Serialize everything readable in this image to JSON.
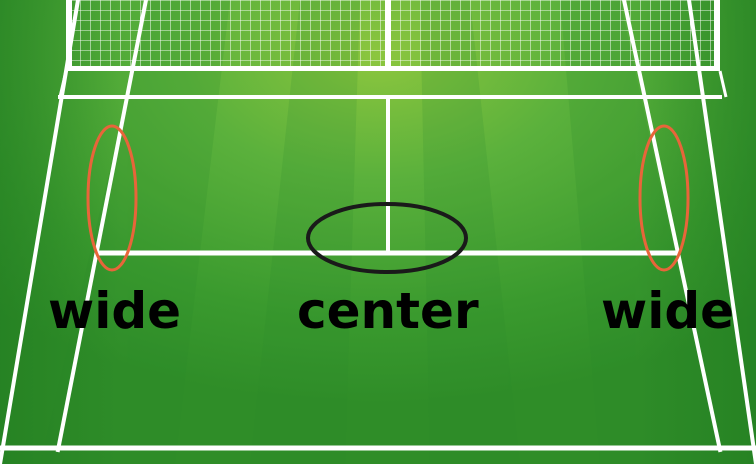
{
  "labels": {
    "wide_left": "wide",
    "center": "center",
    "wide_right": "wide"
  },
  "colors": {
    "court_light": "#8cc63e",
    "court_mid": "#4aa83a",
    "court_dark": "#2a8a2a",
    "court_lines": "#ffffff",
    "net_band": "#ffffff",
    "wide_marker": "#e8653a",
    "center_marker": "#1a1a1a",
    "label_text": "#000000"
  },
  "icons": {
    "net": "tennis-net",
    "court": "tennis-court"
  }
}
